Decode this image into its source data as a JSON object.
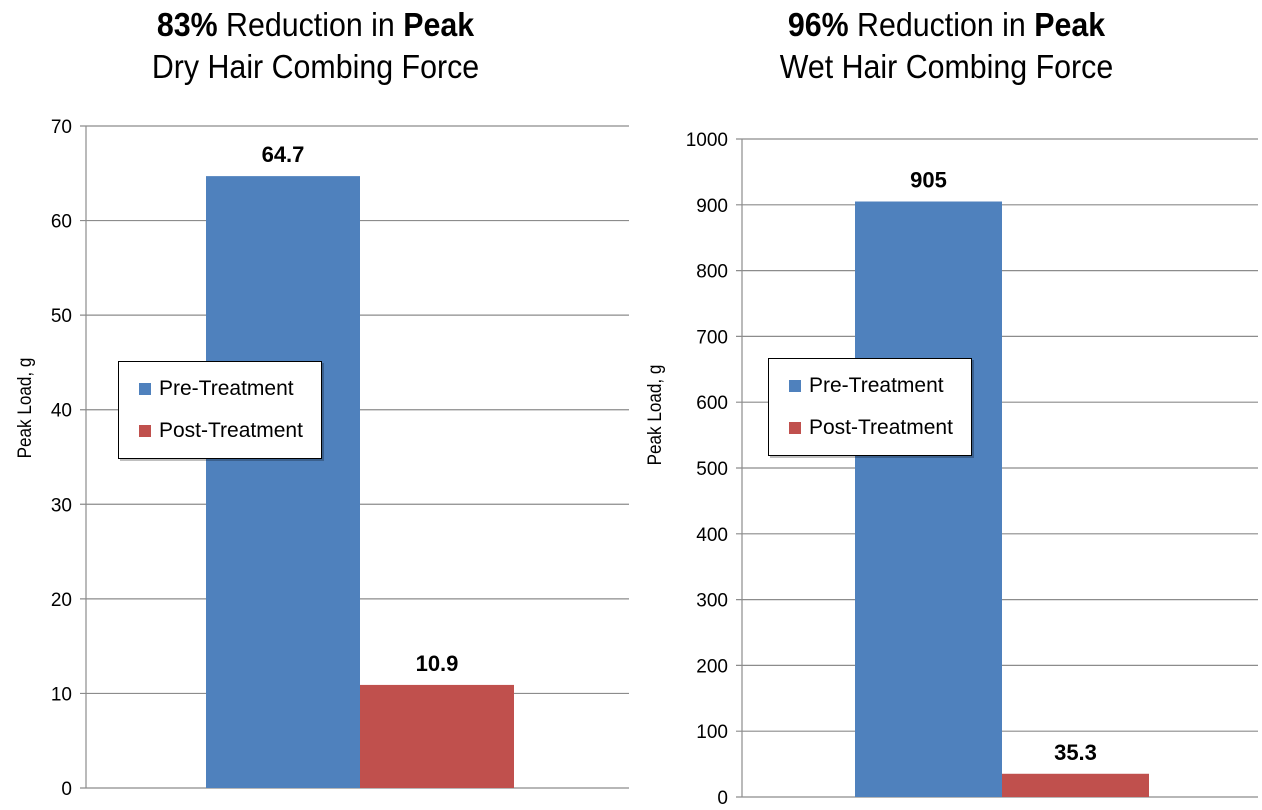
{
  "chart_data": [
    {
      "type": "bar",
      "title_pct": "83%",
      "title_mid": " Reduction in ",
      "title_bold": "Peak",
      "title_line2": "Dry Hair Combing Force",
      "ylabel": "Peak Load, g",
      "ylim": [
        0,
        70
      ],
      "yticks": [
        0,
        10,
        20,
        30,
        40,
        50,
        60,
        70
      ],
      "grid": true,
      "legend_position": "left",
      "series": [
        {
          "name": "Pre-Treatment",
          "values": [
            64.7
          ],
          "label": "64.7",
          "color": "#4F81BD"
        },
        {
          "name": "Post-Treatment",
          "values": [
            10.9
          ],
          "label": "10.9",
          "color": "#C0504D"
        }
      ]
    },
    {
      "type": "bar",
      "title_pct": "96%",
      "title_mid": " Reduction in ",
      "title_bold": "Peak",
      "title_line2": "Wet Hair Combing Force",
      "ylabel": "Peak Load, g",
      "ylim": [
        0,
        1000
      ],
      "yticks": [
        0,
        100,
        200,
        300,
        400,
        500,
        600,
        700,
        800,
        900,
        1000
      ],
      "grid": true,
      "legend_position": "left",
      "series": [
        {
          "name": "Pre-Treatment",
          "values": [
            905
          ],
          "label": "905",
          "color": "#4F81BD"
        },
        {
          "name": "Post-Treatment",
          "values": [
            35.3
          ],
          "label": "35.3",
          "color": "#C0504D"
        }
      ]
    }
  ]
}
